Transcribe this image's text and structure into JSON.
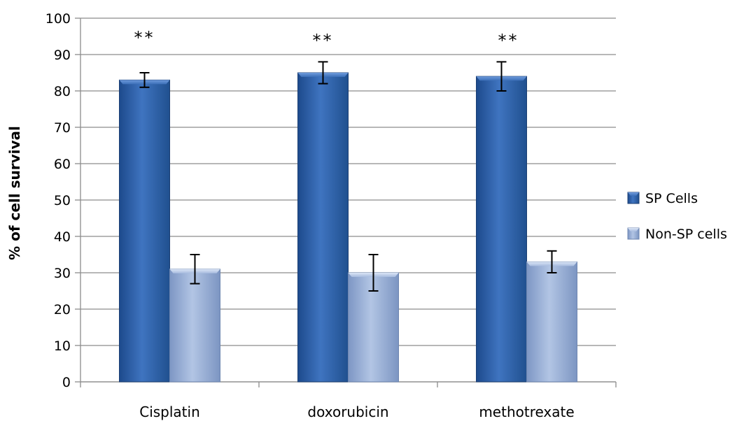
{
  "chart_data": {
    "type": "bar",
    "title": "",
    "xlabel": "",
    "ylabel": "% of cell survival",
    "ylim": [
      0,
      100
    ],
    "yticks": [
      0,
      10,
      20,
      30,
      40,
      50,
      60,
      70,
      80,
      90,
      100
    ],
    "grid": true,
    "legend_position": "right",
    "categories": [
      "Cisplatin",
      "doxorubicin",
      "methotrexate"
    ],
    "series": [
      {
        "name": "SP Cells",
        "values": [
          83,
          85,
          84
        ],
        "error_low": [
          81,
          82,
          80
        ],
        "error_high": [
          85,
          88,
          88
        ],
        "color": "#3a6cb5"
      },
      {
        "name": "Non-SP cells",
        "values": [
          31,
          30,
          33
        ],
        "error_low": [
          27,
          25,
          30
        ],
        "error_high": [
          35,
          35,
          36
        ],
        "color": "#9fb4d8"
      }
    ],
    "annotations": [
      "**",
      "**",
      "**"
    ]
  }
}
